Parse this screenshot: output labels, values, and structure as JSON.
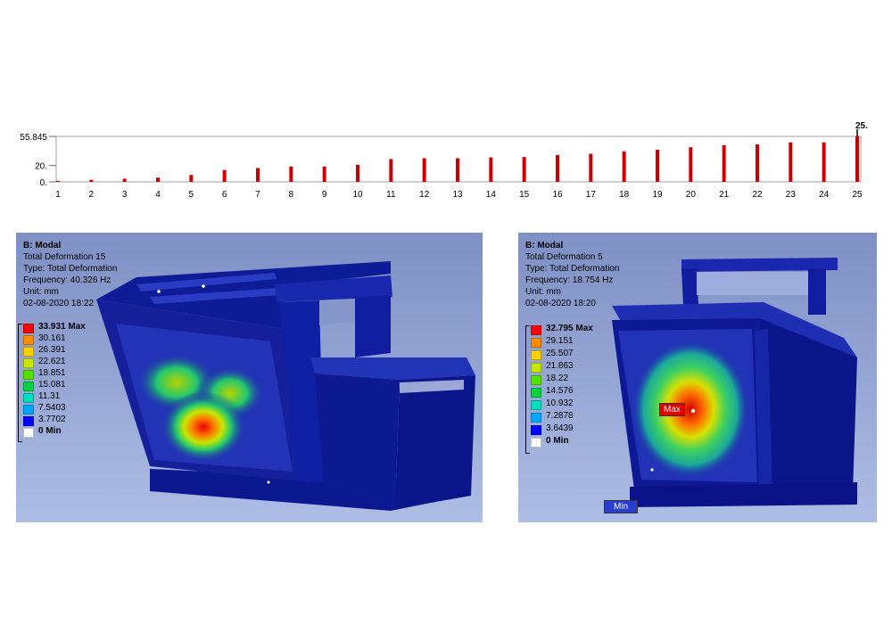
{
  "chart_data": {
    "type": "bar",
    "title": "",
    "xlabel": "",
    "ylabel": "",
    "categories": [
      "1",
      "2",
      "3",
      "4",
      "5",
      "6",
      "7",
      "8",
      "9",
      "10",
      "11",
      "12",
      "13",
      "14",
      "15",
      "16",
      "17",
      "18",
      "19",
      "20",
      "21",
      "22",
      "23",
      "24",
      "25"
    ],
    "values": [
      1.2,
      2.5,
      3.8,
      5.2,
      8.5,
      14.5,
      17.0,
      18.8,
      18.8,
      21.0,
      28.0,
      29.0,
      29.0,
      30.0,
      30.5,
      33.0,
      34.5,
      37.5,
      39.5,
      42.5,
      45.0,
      46.0,
      48.5,
      48.5,
      55.8
    ],
    "ytick_labels": [
      "0.",
      "20.",
      "55.845"
    ],
    "ytick_values": [
      0,
      20,
      55.845
    ],
    "ylim": [
      0,
      55.845
    ],
    "bar_color": "#cc0000",
    "top_marker_label": "25.",
    "grid": false
  },
  "panels": [
    {
      "id": "left",
      "header": {
        "title": "B: Modal",
        "result": "Total Deformation 15",
        "type": "Type: Total Deformation",
        "frequency": "Frequency: 40.326 Hz",
        "unit": "Unit: mm",
        "date": "02-08-2020 18:22"
      },
      "legend": {
        "max_label": "33.931 Max",
        "levels": [
          "30.161",
          "26.391",
          "22.621",
          "18.851",
          "15.081",
          "11.31",
          "7.5403",
          "3.7702"
        ],
        "min_label": "0 Min"
      }
    },
    {
      "id": "right",
      "header": {
        "title": "B: Modal",
        "result": "Total Deformation 5",
        "type": "Type: Total Deformation",
        "frequency": "Frequency: 18.754 Hz",
        "unit": "Unit: mm",
        "date": "02-08-2020 18:20"
      },
      "legend": {
        "max_label": "32.795 Max",
        "levels": [
          "29.151",
          "25.507",
          "21.863",
          "18.22",
          "14.576",
          "10.932",
          "7.2878",
          "3.6439"
        ],
        "min_label": "0 Min"
      },
      "probes": {
        "max_tag": "Max",
        "min_tag": "Min"
      }
    }
  ],
  "legend_colors": [
    "#ff0000",
    "#ff8c00",
    "#ffd000",
    "#c8e600",
    "#55e000",
    "#00d23c",
    "#00dcbe",
    "#00a6ff",
    "#0000ff",
    "#ffffff"
  ]
}
